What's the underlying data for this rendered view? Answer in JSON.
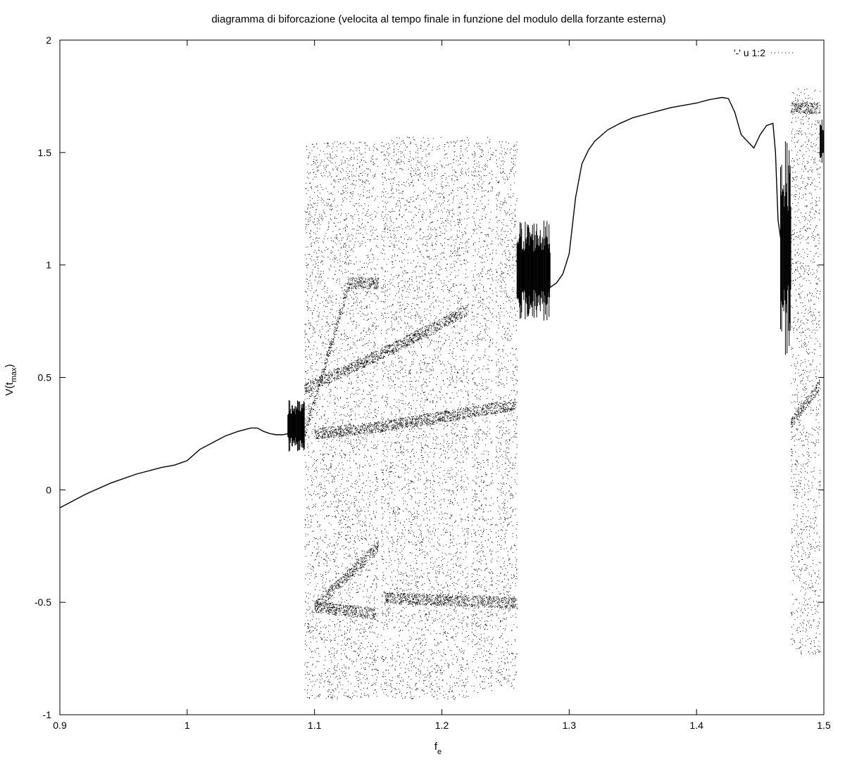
{
  "chart_data": {
    "type": "scatter",
    "title": "diagramma di biforcazione (velocita al tempo finale in funzione del modulo della forzante esterna)",
    "xlabel": {
      "base": "f",
      "sub": "e"
    },
    "ylabel": {
      "base": "V(t",
      "sub": "max",
      "end": ")"
    },
    "xlim": [
      0.9,
      1.5
    ],
    "ylim": [
      -1,
      2
    ],
    "xticks": [
      0.9,
      1.0,
      1.1,
      1.2,
      1.3,
      1.4,
      1.5
    ],
    "xtick_labels": [
      "0.9",
      "1",
      "1.1",
      "1.2",
      "1.3",
      "1.4",
      "1.5"
    ],
    "yticks": [
      -1,
      -0.5,
      0,
      0.5,
      1,
      1.5,
      2
    ],
    "ytick_labels": [
      "-1",
      "-0.5",
      "0",
      "0.5",
      "1",
      "1.5",
      "2"
    ],
    "legend": {
      "label": "'-' u 1:2",
      "placement": "top-right"
    },
    "grid": false,
    "color": "#000000",
    "series": [
      {
        "name": "'-' u 1:2",
        "kind": "period-1 branch",
        "x": [
          0.9,
          0.92,
          0.94,
          0.96,
          0.98,
          0.99,
          1.0,
          1.01,
          1.02,
          1.03,
          1.04,
          1.05,
          1.055,
          1.06,
          1.065,
          1.07,
          1.075,
          1.079
        ],
        "y": [
          -0.08,
          -0.02,
          0.03,
          0.07,
          0.1,
          0.11,
          0.13,
          0.18,
          0.21,
          0.24,
          0.26,
          0.275,
          0.275,
          0.26,
          0.25,
          0.245,
          0.245,
          0.25
        ]
      },
      {
        "name": "'-' u 1:2",
        "kind": "period-1 branch",
        "x": [
          1.285,
          1.29,
          1.295,
          1.3,
          1.305,
          1.31,
          1.315,
          1.32,
          1.33,
          1.34,
          1.35,
          1.36,
          1.37,
          1.38,
          1.39,
          1.4,
          1.41,
          1.42,
          1.425,
          1.43,
          1.435,
          1.44,
          1.445,
          1.45,
          1.455,
          1.46,
          1.462,
          1.464,
          1.466
        ],
        "y": [
          0.9,
          0.92,
          0.96,
          1.05,
          1.3,
          1.45,
          1.51,
          1.55,
          1.6,
          1.63,
          1.655,
          1.67,
          1.685,
          1.7,
          1.71,
          1.72,
          1.735,
          1.745,
          1.74,
          1.68,
          1.58,
          1.55,
          1.52,
          1.58,
          1.62,
          1.63,
          1.5,
          1.2,
          1.12
        ]
      }
    ],
    "chaotic_bands": [
      {
        "xrange": [
          1.092,
          1.127
        ],
        "y": [
          -0.93,
          1.55
        ]
      },
      {
        "xrange": [
          1.127,
          1.15
        ],
        "y": [
          -0.93,
          1.55
        ]
      },
      {
        "xrange": [
          1.152,
          1.221
        ],
        "y": [
          -0.93,
          1.57
        ]
      },
      {
        "xrange": [
          1.223,
          1.24
        ],
        "y": [
          -0.9,
          1.57
        ]
      },
      {
        "xrange": [
          1.242,
          1.259
        ],
        "y": [
          -0.88,
          1.55
        ]
      },
      {
        "xrange": [
          1.474,
          1.497
        ],
        "y": [
          -0.73,
          1.8
        ]
      }
    ],
    "dense_branches": [
      {
        "x": [
          1.092,
          1.127,
          1.15
        ],
        "y": [
          0.25,
          0.92,
          0.92
        ]
      },
      {
        "x": [
          1.092,
          1.15,
          1.22
        ],
        "y": [
          0.45,
          0.6,
          0.8
        ]
      },
      {
        "x": [
          1.1,
          1.15,
          1.258
        ],
        "y": [
          0.25,
          0.28,
          0.38
        ]
      },
      {
        "x": [
          1.1,
          1.15
        ],
        "y": [
          -0.52,
          -0.25
        ]
      },
      {
        "x": [
          1.155,
          1.258
        ],
        "y": [
          -0.48,
          -0.5
        ]
      },
      {
        "x": [
          1.1,
          1.148
        ],
        "y": [
          -0.52,
          -0.55
        ]
      },
      {
        "x": [
          1.474,
          1.497
        ],
        "y": [
          0.3,
          0.47
        ]
      },
      {
        "x": [
          1.474,
          1.497
        ],
        "y": [
          1.7,
          1.7
        ]
      }
    ],
    "oscillation_regions": [
      {
        "xrange": [
          1.079,
          1.092
        ],
        "y": [
          0.17,
          0.4
        ]
      },
      {
        "xrange": [
          1.259,
          1.285
        ],
        "y": [
          0.75,
          1.2
        ]
      },
      {
        "xrange": [
          1.466,
          1.474
        ],
        "y": [
          0.6,
          1.55
        ]
      },
      {
        "xrange": [
          1.497,
          1.5
        ],
        "y": [
          1.45,
          1.65
        ]
      }
    ]
  }
}
